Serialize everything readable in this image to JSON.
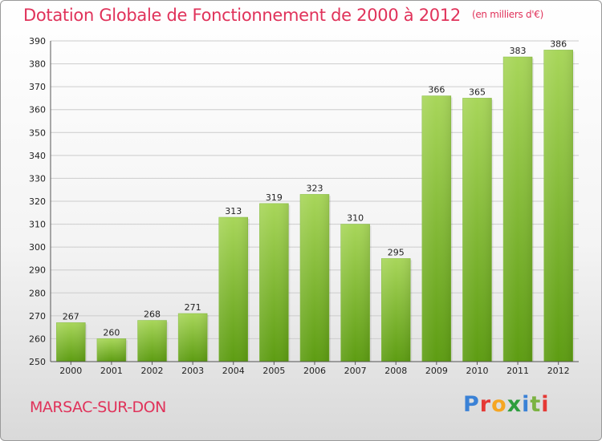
{
  "header": {
    "title": "Dotation Globale de Fonctionnement de 2000 à 2012",
    "unit": "(en milliers d'€)"
  },
  "footer": {
    "commune": "MARSAC-SUR-DON",
    "logo_text": "Proxiti",
    "logo_colors": [
      "#3b82d6",
      "#e53935",
      "#f5a623",
      "#2e9e3e",
      "#3b82d6",
      "#7cb342",
      "#e53935"
    ]
  },
  "colors": {
    "bar_top": "#a8d65a",
    "bar_bottom": "#5d9c12",
    "grid": "#cccccc",
    "title": "#e0325a"
  },
  "chart_data": {
    "type": "bar",
    "categories": [
      "2000",
      "2001",
      "2002",
      "2003",
      "2004",
      "2005",
      "2006",
      "2007",
      "2008",
      "2009",
      "2010",
      "2011",
      "2012"
    ],
    "values": [
      267,
      260,
      268,
      271,
      313,
      319,
      323,
      310,
      295,
      366,
      365,
      383,
      386
    ],
    "ylim": [
      250,
      390
    ],
    "yticks": [
      250,
      260,
      270,
      280,
      290,
      300,
      310,
      320,
      330,
      340,
      350,
      360,
      370,
      380,
      390
    ],
    "grid": true
  }
}
